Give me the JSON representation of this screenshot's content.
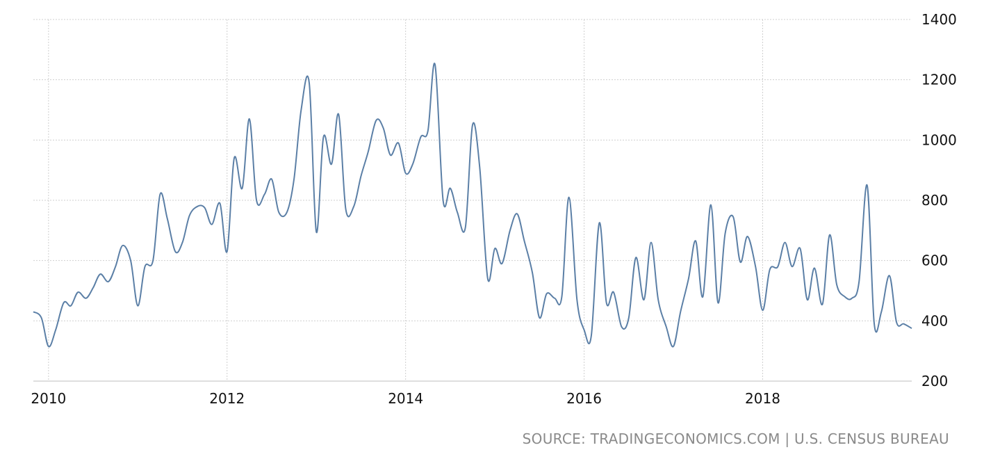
{
  "chart_data": {
    "type": "line",
    "title": "",
    "xlabel": "",
    "ylabel": "",
    "xlim": [
      2009.83,
      2019.67
    ],
    "ylim": [
      200,
      1400
    ],
    "y_ticks": [
      "200",
      "400",
      "600",
      "800",
      "1000",
      "1200",
      "1400"
    ],
    "x_ticks": [
      "2010",
      "2012",
      "2014",
      "2016",
      "2018"
    ],
    "grid": true,
    "line_color": "#5b7fa6",
    "series": [
      {
        "x": [
          2009.83,
          2009.92,
          2010.0,
          2010.08,
          2010.17,
          2010.25,
          2010.33,
          2010.42,
          2010.5,
          2010.58,
          2010.67,
          2010.75,
          2010.83,
          2010.92,
          2011.0,
          2011.08,
          2011.17,
          2011.25,
          2011.33,
          2011.42,
          2011.5,
          2011.58,
          2011.67,
          2011.75,
          2011.83,
          2011.92,
          2012.0,
          2012.08,
          2012.17,
          2012.25,
          2012.33,
          2012.42,
          2012.5,
          2012.58,
          2012.67,
          2012.75,
          2012.83,
          2012.92,
          2013.0,
          2013.08,
          2013.17,
          2013.25,
          2013.33,
          2013.42,
          2013.5,
          2013.58,
          2013.67,
          2013.75,
          2013.83,
          2013.92,
          2014.0,
          2014.08,
          2014.17,
          2014.25,
          2014.33,
          2014.42,
          2014.5,
          2014.58,
          2014.67,
          2014.75,
          2014.83,
          2014.92,
          2015.0,
          2015.08,
          2015.17,
          2015.25,
          2015.33,
          2015.42,
          2015.5,
          2015.58,
          2015.67,
          2015.75,
          2015.83,
          2015.92,
          2016.0,
          2016.08,
          2016.17,
          2016.25,
          2016.33,
          2016.42,
          2016.5,
          2016.58,
          2016.67,
          2016.75,
          2016.83,
          2016.92,
          2017.0,
          2017.08,
          2017.17,
          2017.25,
          2017.33,
          2017.42,
          2017.5,
          2017.58,
          2017.67,
          2017.75,
          2017.83,
          2017.92,
          2018.0,
          2018.08,
          2018.17,
          2018.25,
          2018.33,
          2018.42,
          2018.5,
          2018.58,
          2018.67,
          2018.75,
          2018.83,
          2018.92,
          2019.0,
          2019.08,
          2019.17,
          2019.25,
          2019.33,
          2019.42,
          2019.5,
          2019.58,
          2019.67
        ],
        "values": [
          430,
          410,
          315,
          370,
          460,
          450,
          495,
          475,
          510,
          555,
          530,
          580,
          650,
          600,
          450,
          580,
          600,
          820,
          740,
          630,
          660,
          750,
          780,
          775,
          720,
          790,
          630,
          940,
          840,
          1070,
          800,
          820,
          870,
          760,
          760,
          870,
          1100,
          1190,
          695,
          1010,
          920,
          1085,
          770,
          780,
          880,
          960,
          1065,
          1040,
          950,
          990,
          890,
          920,
          1010,
          1030,
          1250,
          800,
          840,
          760,
          710,
          1050,
          910,
          540,
          640,
          590,
          700,
          755,
          665,
          560,
          410,
          490,
          475,
          480,
          810,
          470,
          370,
          350,
          725,
          460,
          495,
          380,
          410,
          610,
          470,
          660,
          470,
          380,
          315,
          430,
          540,
          665,
          480,
          785,
          460,
          690,
          745,
          595,
          680,
          580,
          435,
          570,
          580,
          660,
          580,
          640,
          470,
          575,
          455,
          685,
          520,
          480,
          475,
          530,
          850,
          390,
          430,
          550,
          395,
          390,
          375
        ]
      }
    ]
  },
  "footer": {
    "source": "SOURCE: TRADINGECONOMICS.COM | U.S. CENSUS BUREAU"
  }
}
